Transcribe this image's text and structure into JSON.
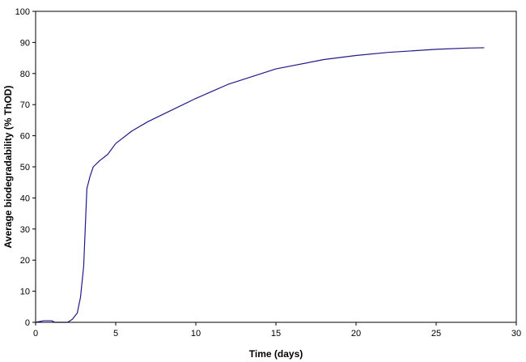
{
  "chart_data": {
    "type": "line",
    "title": "",
    "xlabel": "Time (days)",
    "ylabel": "Average biodegradability (% ThOD)",
    "xlim": [
      0,
      30
    ],
    "ylim": [
      0,
      100
    ],
    "xticks": [
      0,
      5,
      10,
      15,
      20,
      25,
      30
    ],
    "yticks": [
      0,
      10,
      20,
      30,
      40,
      50,
      60,
      70,
      80,
      90,
      100
    ],
    "grid": false,
    "legend": "none",
    "series": [
      {
        "color": "#1f1a8a",
        "x": [
          0,
          0.5,
          1.0,
          1.2,
          2.0,
          2.3,
          2.6,
          2.8,
          3.0,
          3.2,
          3.4,
          3.6,
          4.0,
          4.5,
          5.0,
          6.0,
          7.0,
          8.0,
          10.0,
          12.0,
          15.0,
          18.0,
          20.0,
          22.0,
          25.0,
          27.0,
          28.0
        ],
        "y": [
          0,
          0.5,
          0.5,
          0,
          0,
          1,
          3,
          8,
          18,
          43,
          47,
          50,
          52,
          54,
          57.5,
          61.5,
          64.5,
          67,
          72,
          76.5,
          81.5,
          84.5,
          85.8,
          86.8,
          87.8,
          88.2,
          88.3
        ]
      }
    ]
  }
}
